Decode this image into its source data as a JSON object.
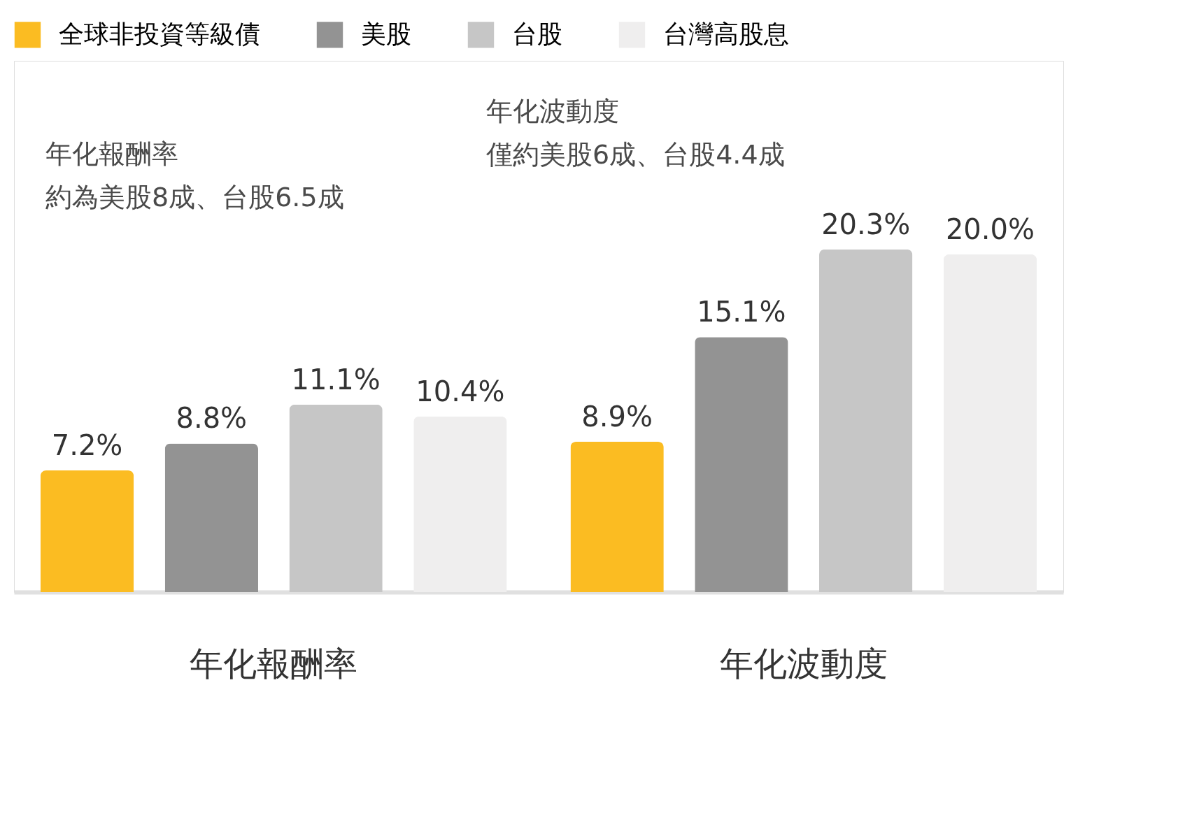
{
  "chart_data": {
    "type": "bar",
    "categories": [
      "年化報酬率",
      "年化波動度"
    ],
    "series": [
      {
        "name": "全球非投資等級債",
        "color": "#fbbc22",
        "values": [
          7.2,
          8.9
        ],
        "value_labels": [
          "7.2%",
          "8.9%"
        ]
      },
      {
        "name": "美股",
        "color": "#939393",
        "values": [
          8.8,
          15.1
        ],
        "value_labels": [
          "8.8%",
          "15.1%"
        ]
      },
      {
        "name": "台股",
        "color": "#c6c6c6",
        "values": [
          11.1,
          20.3
        ],
        "value_labels": [
          "11.1%",
          "20.3%"
        ]
      },
      {
        "name": "台灣高股息",
        "color": "#efeeee",
        "values": [
          10.4,
          20.0
        ],
        "value_labels": [
          "10.4%",
          "20.0%"
        ]
      }
    ],
    "annotations": [
      "年化報酬率",
      "約為美股8成、台股6.5成",
      "年化波動度",
      "僅約美股6成、台股4.4成"
    ],
    "legend": "top",
    "grid": false
  }
}
